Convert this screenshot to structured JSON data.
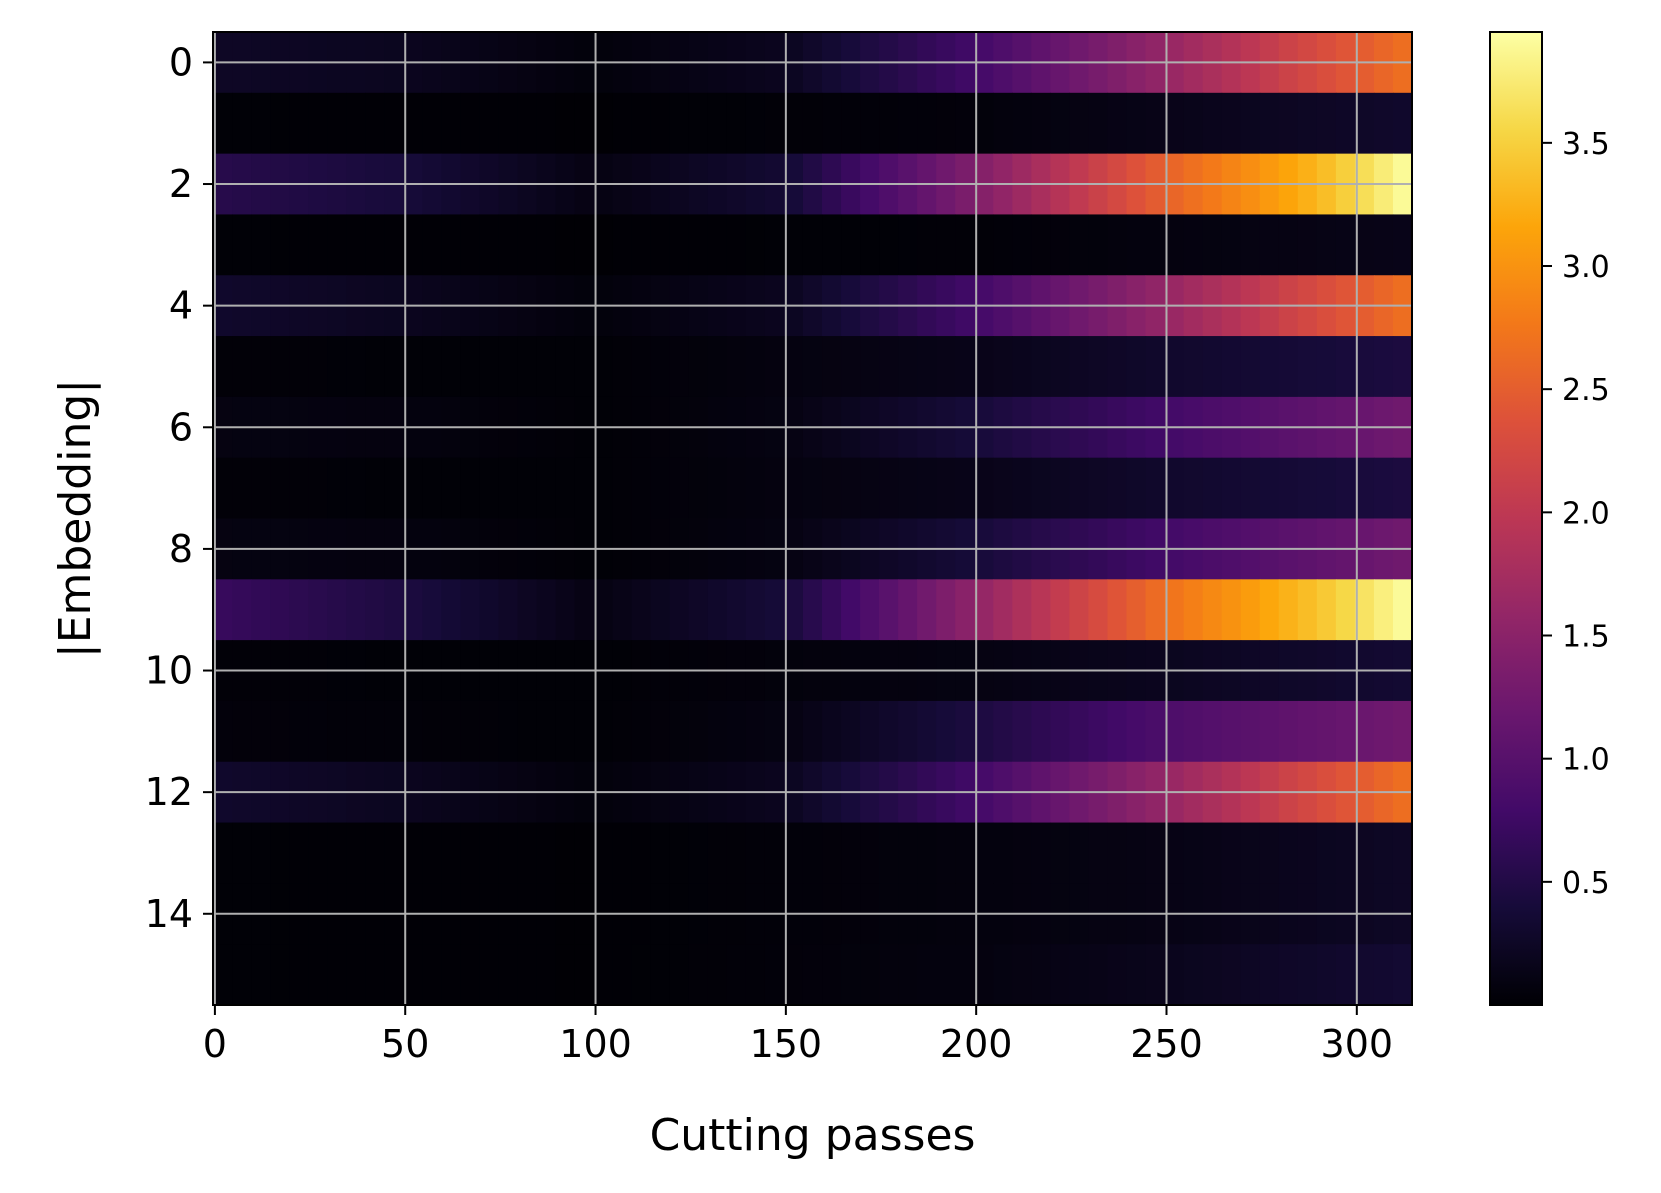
{
  "chart_data": {
    "type": "heatmap",
    "title": "",
    "xlabel": "Cutting passes",
    "ylabel": "|Embedding|",
    "xlim": [
      0,
      314
    ],
    "ylim": [
      15.5,
      -0.5
    ],
    "n_rows": 16,
    "n_cols": 315,
    "colormap": "inferno",
    "vmin": 0.0,
    "vmax": 3.95,
    "grid": true,
    "grid_color": "#b0b0b0",
    "x_ticks": [
      0,
      50,
      100,
      150,
      200,
      250,
      300
    ],
    "x_tick_labels": [
      "0",
      "50",
      "100",
      "150",
      "200",
      "250",
      "300"
    ],
    "y_ticks": [
      0,
      2,
      4,
      6,
      8,
      10,
      12,
      14
    ],
    "y_tick_labels": [
      "0",
      "2",
      "4",
      "6",
      "8",
      "10",
      "12",
      "14"
    ],
    "colorbar": {
      "ticks": [
        0.5,
        1.0,
        1.5,
        2.0,
        2.5,
        3.0,
        3.5
      ],
      "tick_labels": [
        "0.5",
        "1.0",
        "1.5",
        "2.0",
        "2.5",
        "3.0",
        "3.5"
      ]
    },
    "row_profiles": [
      {
        "row": 0,
        "points": [
          [
            0,
            0.25
          ],
          [
            50,
            0.2
          ],
          [
            100,
            0.05
          ],
          [
            150,
            0.2
          ],
          [
            200,
            0.8
          ],
          [
            250,
            1.6
          ],
          [
            314,
            2.7
          ]
        ]
      },
      {
        "row": 1,
        "points": [
          [
            0,
            0.02
          ],
          [
            100,
            0.01
          ],
          [
            200,
            0.05
          ],
          [
            250,
            0.15
          ],
          [
            314,
            0.3
          ]
        ]
      },
      {
        "row": 2,
        "points": [
          [
            0,
            0.55
          ],
          [
            50,
            0.4
          ],
          [
            100,
            0.1
          ],
          [
            150,
            0.35
          ],
          [
            200,
            1.4
          ],
          [
            250,
            2.55
          ],
          [
            290,
            3.3
          ],
          [
            314,
            3.95
          ]
        ]
      },
      {
        "row": 3,
        "points": [
          [
            0,
            0.02
          ],
          [
            100,
            0.01
          ],
          [
            200,
            0.03
          ],
          [
            250,
            0.08
          ],
          [
            314,
            0.15
          ]
        ]
      },
      {
        "row": 4,
        "points": [
          [
            0,
            0.3
          ],
          [
            50,
            0.2
          ],
          [
            100,
            0.05
          ],
          [
            150,
            0.2
          ],
          [
            200,
            0.8
          ],
          [
            250,
            1.6
          ],
          [
            314,
            2.7
          ]
        ]
      },
      {
        "row": 5,
        "points": [
          [
            0,
            0.03
          ],
          [
            100,
            0.02
          ],
          [
            200,
            0.15
          ],
          [
            250,
            0.3
          ],
          [
            314,
            0.45
          ]
        ]
      },
      {
        "row": 6,
        "points": [
          [
            0,
            0.1
          ],
          [
            50,
            0.08
          ],
          [
            100,
            0.02
          ],
          [
            150,
            0.1
          ],
          [
            200,
            0.4
          ],
          [
            250,
            0.8
          ],
          [
            314,
            1.25
          ]
        ]
      },
      {
        "row": 7,
        "points": [
          [
            0,
            0.03
          ],
          [
            100,
            0.02
          ],
          [
            200,
            0.15
          ],
          [
            250,
            0.3
          ],
          [
            314,
            0.45
          ]
        ]
      },
      {
        "row": 8,
        "points": [
          [
            0,
            0.1
          ],
          [
            50,
            0.08
          ],
          [
            100,
            0.02
          ],
          [
            150,
            0.1
          ],
          [
            200,
            0.4
          ],
          [
            250,
            0.8
          ],
          [
            314,
            1.25
          ]
        ]
      },
      {
        "row": 9,
        "points": [
          [
            0,
            0.7
          ],
          [
            50,
            0.45
          ],
          [
            100,
            0.1
          ],
          [
            150,
            0.4
          ],
          [
            200,
            1.55
          ],
          [
            250,
            2.7
          ],
          [
            290,
            3.4
          ],
          [
            314,
            3.95
          ]
        ]
      },
      {
        "row": 10,
        "points": [
          [
            0,
            0.03
          ],
          [
            100,
            0.02
          ],
          [
            200,
            0.1
          ],
          [
            250,
            0.2
          ],
          [
            314,
            0.35
          ]
        ]
      },
      {
        "row": 11,
        "points": [
          [
            0,
            0.05
          ],
          [
            100,
            0.02
          ],
          [
            150,
            0.1
          ],
          [
            200,
            0.45
          ],
          [
            250,
            0.9
          ],
          [
            314,
            1.25
          ]
        ]
      },
      {
        "row": 12,
        "points": [
          [
            0,
            0.3
          ],
          [
            50,
            0.2
          ],
          [
            100,
            0.05
          ],
          [
            150,
            0.2
          ],
          [
            200,
            0.8
          ],
          [
            250,
            1.6
          ],
          [
            314,
            2.7
          ]
        ]
      },
      {
        "row": 13,
        "points": [
          [
            0,
            0.02
          ],
          [
            100,
            0.01
          ],
          [
            200,
            0.07
          ],
          [
            250,
            0.12
          ],
          [
            314,
            0.25
          ]
        ]
      },
      {
        "row": 14,
        "points": [
          [
            0,
            0.02
          ],
          [
            100,
            0.01
          ],
          [
            200,
            0.07
          ],
          [
            250,
            0.12
          ],
          [
            314,
            0.25
          ]
        ]
      },
      {
        "row": 15,
        "points": [
          [
            0,
            0.02
          ],
          [
            100,
            0.01
          ],
          [
            200,
            0.08
          ],
          [
            250,
            0.18
          ],
          [
            314,
            0.35
          ]
        ]
      }
    ]
  }
}
